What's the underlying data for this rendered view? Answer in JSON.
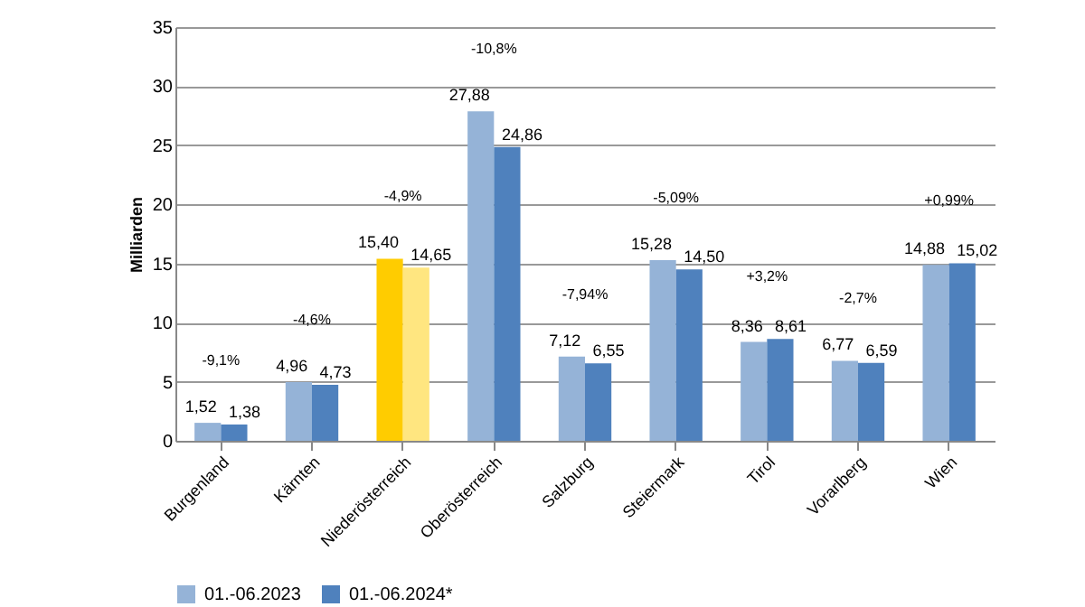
{
  "chart_data": {
    "type": "bar",
    "ylabel": "Milliarden",
    "categories": [
      "Burgenland",
      "Kärnten",
      "Niederösterreich",
      "Oberösterreich",
      "Salzburg",
      "Steiermark",
      "Tirol",
      "Vorarlberg",
      "Wien"
    ],
    "series": [
      {
        "name": "01.-06.2023",
        "color": "#95b3d7",
        "colors": [
          "#95b3d7",
          "#95b3d7",
          "#ffcc00",
          "#95b3d7",
          "#95b3d7",
          "#95b3d7",
          "#95b3d7",
          "#95b3d7",
          "#95b3d7"
        ],
        "values": [
          1.52,
          4.96,
          15.4,
          27.88,
          7.12,
          15.28,
          8.36,
          6.77,
          14.88
        ],
        "value_labels": [
          "1,52",
          "4,96",
          "15,40",
          "27,88",
          "7,12",
          "15,28",
          "8,36",
          "6,77",
          "14,88"
        ]
      },
      {
        "name": "01.-06.2024*",
        "color": "#4f81bd",
        "colors": [
          "#4f81bd",
          "#4f81bd",
          "#ffe680",
          "#4f81bd",
          "#4f81bd",
          "#4f81bd",
          "#4f81bd",
          "#4f81bd",
          "#4f81bd"
        ],
        "values": [
          1.38,
          4.73,
          14.65,
          24.86,
          6.55,
          14.5,
          8.61,
          6.59,
          15.02
        ],
        "value_labels": [
          "1,38",
          "4,73",
          "14,65",
          "24,86",
          "6,55",
          "14,50",
          "8,61",
          "6,59",
          "15,02"
        ]
      }
    ],
    "ylim": [
      0,
      35
    ],
    "yticks": [
      0,
      5,
      10,
      15,
      20,
      25,
      30,
      35
    ],
    "grid": "y",
    "legend": "bottom",
    "annotations": [
      "-9,1%",
      "-4,6%",
      "-4,9%",
      "-10,8%",
      "-7,94%",
      "-5,09%",
      "+3,2%",
      "-2,7%",
      "+0,99%"
    ]
  }
}
